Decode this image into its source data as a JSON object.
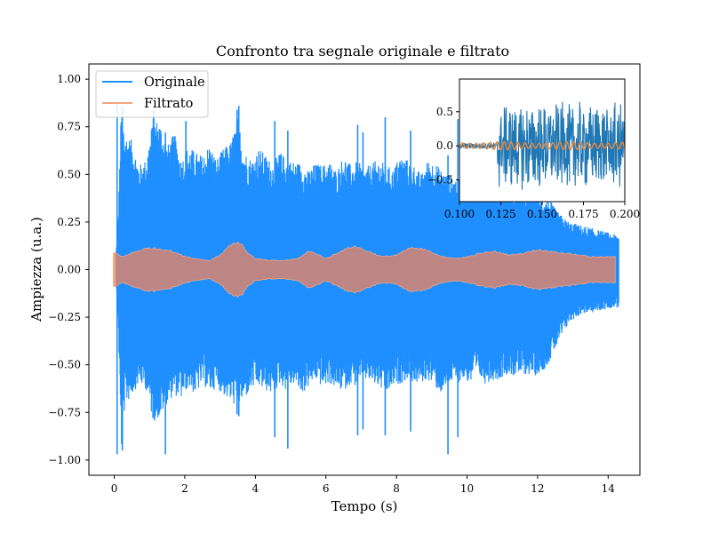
{
  "chart_data": [
    {
      "type": "line",
      "title": "Confronto tra segnale originale e filtrato",
      "xlabel": "Tempo (s)",
      "ylabel": "Ampiezza (u.a.)",
      "xlim": [
        -0.72,
        14.9
      ],
      "ylim": [
        -1.08,
        1.08
      ],
      "x_ticks": [
        0,
        2,
        4,
        6,
        8,
        10,
        12,
        14
      ],
      "x_tick_labels": [
        "0",
        "2",
        "4",
        "6",
        "8",
        "10",
        "12",
        "14"
      ],
      "y_ticks": [
        -1.0,
        -0.75,
        -0.5,
        -0.25,
        0.0,
        0.25,
        0.5,
        0.75,
        1.0
      ],
      "y_tick_labels": [
        "−1.00",
        "−0.75",
        "−0.50",
        "−0.25",
        "0.00",
        "0.25",
        "0.50",
        "0.75",
        "1.00"
      ],
      "grid": false,
      "legend_position": "top-left",
      "series": [
        {
          "name": "Originale",
          "color": "#1f8fff",
          "envelope_t": [
            0.0,
            0.1,
            0.2,
            0.3,
            0.5,
            0.7,
            0.9,
            1.1,
            1.3,
            1.5,
            1.7,
            1.9,
            2.1,
            2.3,
            2.5,
            2.7,
            2.9,
            3.1,
            3.3,
            3.5,
            3.7,
            3.9,
            4.1,
            4.3,
            4.5,
            4.7,
            4.9,
            5.1,
            5.3,
            5.5,
            5.7,
            5.9,
            6.1,
            6.3,
            6.5,
            6.7,
            6.9,
            7.1,
            7.3,
            7.5,
            7.7,
            7.9,
            8.1,
            8.3,
            8.5,
            8.7,
            8.9,
            9.1,
            9.3,
            9.5,
            9.7,
            9.9,
            10.1,
            10.3,
            10.5,
            10.7,
            10.9,
            11.1,
            11.3,
            11.5,
            11.7,
            11.9,
            12.1,
            12.3,
            12.5,
            12.7,
            12.9,
            13.1,
            13.3,
            13.5,
            13.7,
            13.9,
            14.1,
            14.3
          ],
          "envelope_max": [
            0.0,
            0.2,
            0.87,
            0.72,
            0.68,
            0.55,
            0.58,
            0.8,
            0.78,
            0.65,
            0.72,
            0.58,
            0.65,
            0.62,
            0.6,
            0.66,
            0.58,
            0.64,
            0.67,
            0.8,
            0.62,
            0.58,
            0.64,
            0.6,
            0.56,
            0.62,
            0.58,
            0.57,
            0.56,
            0.52,
            0.56,
            0.55,
            0.57,
            0.52,
            0.6,
            0.55,
            0.57,
            0.53,
            0.56,
            0.58,
            0.55,
            0.53,
            0.6,
            0.58,
            0.55,
            0.5,
            0.58,
            0.56,
            0.52,
            0.5,
            0.48,
            0.5,
            0.46,
            0.48,
            0.45,
            0.44,
            0.45,
            0.44,
            0.45,
            0.43,
            0.44,
            0.42,
            0.38,
            0.38,
            0.32,
            0.28,
            0.25,
            0.24,
            0.23,
            0.22,
            0.21,
            0.2,
            0.19,
            0.18
          ],
          "envelope_min": [
            0.0,
            -0.2,
            -0.96,
            -0.72,
            -0.66,
            -0.6,
            -0.63,
            -0.8,
            -0.78,
            -0.7,
            -0.66,
            -0.68,
            -0.62,
            -0.66,
            -0.6,
            -0.65,
            -0.62,
            -0.66,
            -0.7,
            -0.72,
            -0.68,
            -0.63,
            -0.62,
            -0.64,
            -0.66,
            -0.6,
            -0.64,
            -0.6,
            -0.66,
            -0.62,
            -0.58,
            -0.62,
            -0.6,
            -0.63,
            -0.64,
            -0.6,
            -0.62,
            -0.58,
            -0.6,
            -0.62,
            -0.66,
            -0.62,
            -0.6,
            -0.58,
            -0.6,
            -0.6,
            -0.58,
            -0.62,
            -0.66,
            -0.6,
            -0.6,
            -0.58,
            -0.6,
            -0.56,
            -0.6,
            -0.58,
            -0.58,
            -0.55,
            -0.56,
            -0.56,
            -0.55,
            -0.56,
            -0.54,
            -0.5,
            -0.42,
            -0.35,
            -0.28,
            -0.25,
            -0.23,
            -0.23,
            -0.22,
            -0.21,
            -0.2,
            -0.2
          ],
          "spikes": [
            {
              "t": 0.08,
              "min": -0.97,
              "max": 0.87
            },
            {
              "t": 0.23,
              "min": -0.95,
              "max": 0.86
            },
            {
              "t": 1.12,
              "min": -0.68,
              "max": 0.84
            },
            {
              "t": 1.45,
              "min": -0.97,
              "max": 0.72
            },
            {
              "t": 2.03,
              "min": -0.62,
              "max": 0.78
            },
            {
              "t": 3.48,
              "min": -0.76,
              "max": 0.84
            },
            {
              "t": 3.53,
              "min": -0.77,
              "max": 0.86
            },
            {
              "t": 4.55,
              "min": -0.88,
              "max": 0.78
            },
            {
              "t": 4.92,
              "min": -0.94,
              "max": 0.73
            },
            {
              "t": 6.9,
              "min": -0.87,
              "max": 0.76
            },
            {
              "t": 7.05,
              "min": -0.84,
              "max": 0.72
            },
            {
              "t": 7.68,
              "min": -0.87,
              "max": 0.8
            },
            {
              "t": 8.4,
              "min": -0.85,
              "max": 0.73
            },
            {
              "t": 9.46,
              "min": -0.97,
              "max": 0.6
            },
            {
              "t": 9.74,
              "min": -0.88,
              "max": 0.79
            }
          ]
        },
        {
          "name": "Filtrato",
          "color": "#f4a582",
          "envelope_t": [
            0.0,
            0.05,
            0.25,
            0.6,
            1.0,
            1.5,
            1.9,
            2.3,
            2.7,
            3.0,
            3.2,
            3.4,
            3.6,
            3.8,
            4.0,
            4.4,
            4.8,
            5.2,
            5.5,
            5.7,
            6.0,
            6.4,
            6.8,
            7.2,
            7.6,
            8.0,
            8.4,
            8.8,
            9.2,
            9.6,
            10.0,
            10.4,
            10.8,
            11.2,
            11.6,
            12.0,
            12.4,
            12.8,
            13.2,
            13.6,
            14.0,
            14.2
          ],
          "envelope_amp": [
            0.09,
            0.09,
            0.07,
            0.1,
            0.12,
            0.11,
            0.08,
            0.06,
            0.05,
            0.08,
            0.12,
            0.15,
            0.14,
            0.09,
            0.06,
            0.05,
            0.05,
            0.06,
            0.1,
            0.09,
            0.06,
            0.1,
            0.13,
            0.1,
            0.07,
            0.08,
            0.12,
            0.11,
            0.08,
            0.06,
            0.07,
            0.09,
            0.1,
            0.08,
            0.09,
            0.11,
            0.1,
            0.09,
            0.08,
            0.07,
            0.07,
            0.07
          ]
        }
      ]
    },
    {
      "type": "line",
      "title": "",
      "xlim": [
        0.1,
        0.2
      ],
      "ylim": [
        -0.82,
        0.98
      ],
      "x_ticks": [
        0.1,
        0.125,
        0.15,
        0.175,
        0.2
      ],
      "x_tick_labels": [
        "0.100",
        "0.125",
        "0.150",
        "0.175",
        "0.200"
      ],
      "y_ticks": [
        -0.5,
        0.0,
        0.5
      ],
      "y_tick_labels": [
        "−0.5",
        "0.0",
        "0.5"
      ],
      "series": [
        {
          "name": "Originale",
          "color": "#1f77b4",
          "onset_t": 0.123,
          "pre_amp": 0.05,
          "post_amp": 0.65
        },
        {
          "name": "Filtrato",
          "color": "#e8883a",
          "period": 0.0042,
          "amp": 0.06
        }
      ]
    }
  ]
}
